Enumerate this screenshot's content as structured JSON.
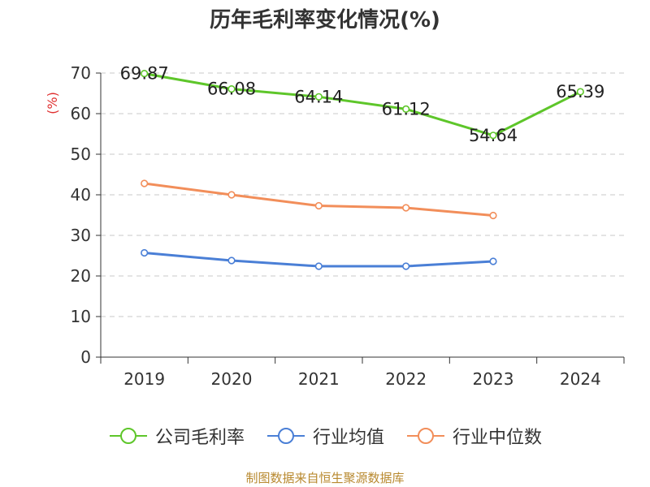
{
  "chart_data": {
    "type": "line",
    "title": "历年毛利率变化情况(%)",
    "ylabel": "(%)",
    "xlabel": "",
    "categories": [
      "2019",
      "2020",
      "2021",
      "2022",
      "2023",
      "2024"
    ],
    "ylim": [
      0,
      70
    ],
    "yticks": [
      0,
      10,
      20,
      30,
      40,
      50,
      60,
      70
    ],
    "grid": true,
    "legend_position": "bottom",
    "series": [
      {
        "name": "公司毛利率",
        "color": "#5ec62a",
        "values": [
          69.87,
          66.08,
          64.14,
          61.12,
          54.64,
          65.39
        ],
        "labels": [
          "69.87",
          "66.08",
          "64.14",
          "61.12",
          "54.64",
          "65.39"
        ]
      },
      {
        "name": "行业均值",
        "color": "#4a7fd6",
        "values": [
          25.7,
          23.8,
          22.4,
          22.4,
          23.6,
          null
        ]
      },
      {
        "name": "行业中位数",
        "color": "#f28e5a",
        "values": [
          42.8,
          40.0,
          37.3,
          36.8,
          34.9,
          null
        ]
      }
    ]
  },
  "footer": "制图数据来自恒生聚源数据库"
}
